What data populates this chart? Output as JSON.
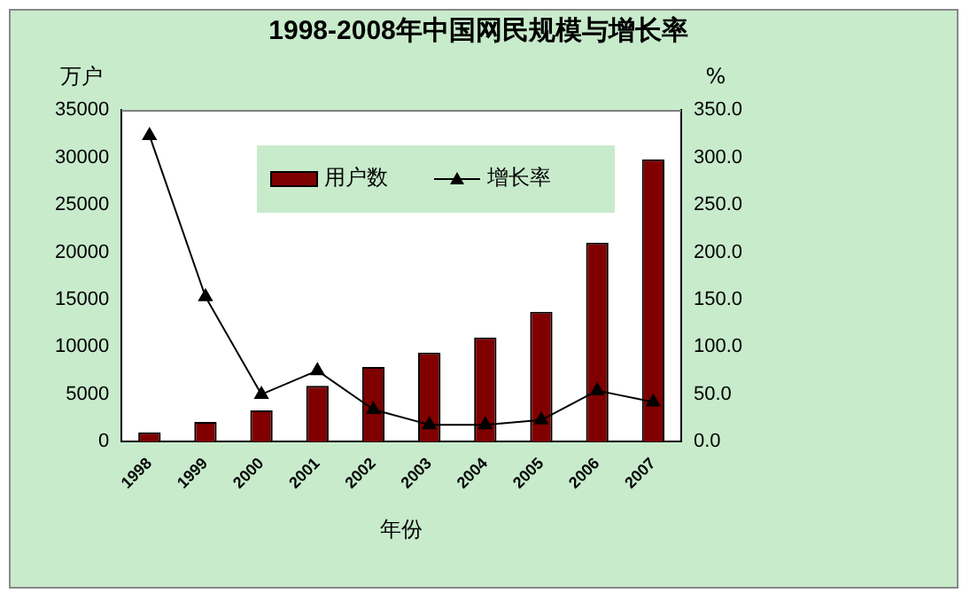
{
  "chart_data": {
    "type": "bar",
    "title": "1998-2008年中国网民规模与增长率",
    "xlabel": "年份",
    "ylabel": "万户",
    "y2label": "%",
    "categories": [
      "1998",
      "1999",
      "2000",
      "2001",
      "2002",
      "2003",
      "2004",
      "2005",
      "2006",
      "2007"
    ],
    "series": [
      {
        "name": "用户数",
        "color": "#800000",
        "values": [
          1000,
          2100,
          3300,
          5900,
          7900,
          9400,
          11000,
          13700,
          21000,
          29800
        ]
      },
      {
        "name": "增长率",
        "type": "line",
        "axis": "y2",
        "color": "#000000",
        "marker": "triangle",
        "values": [
          323,
          153,
          50,
          75,
          34,
          18,
          18,
          23,
          54,
          42
        ]
      }
    ],
    "ylim": [
      0,
      35000
    ],
    "yticks": [
      0,
      5000,
      10000,
      15000,
      20000,
      25000,
      30000,
      35000
    ],
    "y2lim": [
      0,
      350
    ],
    "y2ticks": [
      {
        "value": 0,
        "label": "0.0"
      },
      {
        "value": 50,
        "label": "50.0"
      },
      {
        "value": 100,
        "label": "100.0"
      },
      {
        "value": 150,
        "label": "150.0"
      },
      {
        "value": 200,
        "label": "200.0"
      },
      {
        "value": 250,
        "label": "250.0"
      },
      {
        "value": 300,
        "label": "300.0"
      },
      {
        "value": 350,
        "label": "350.0"
      }
    ],
    "grid": false,
    "legend": "top"
  }
}
